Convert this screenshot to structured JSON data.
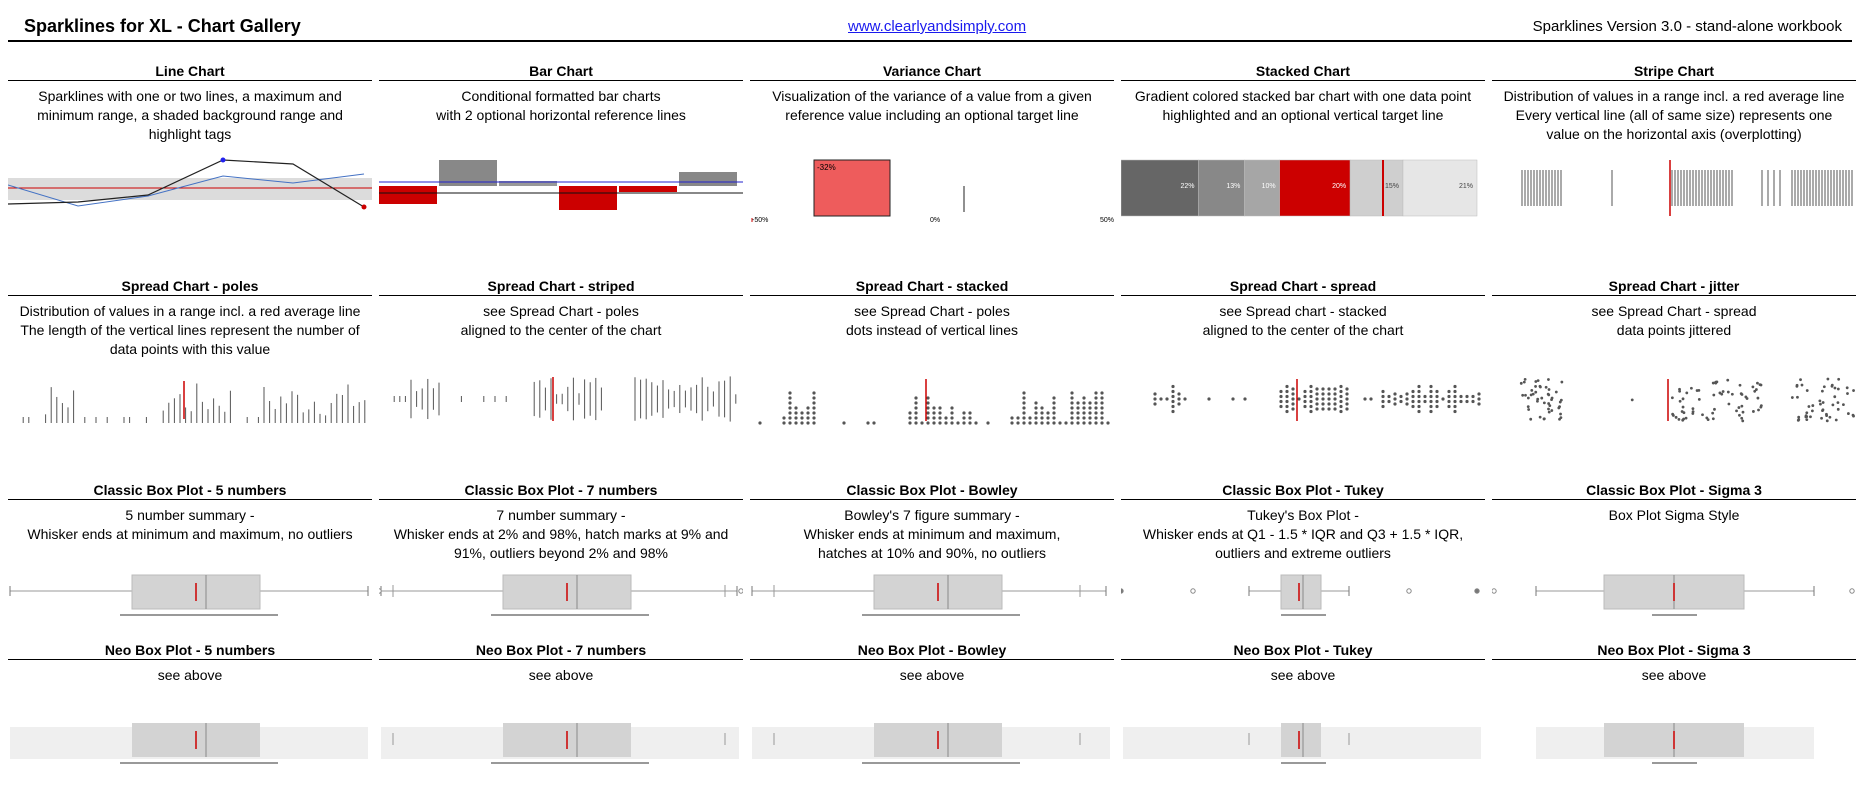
{
  "header": {
    "title": "Sparklines for XL - Chart Gallery",
    "link": "www.clearlyandsimply.com",
    "version": "Sparklines Version 3.0 - stand-alone workbook"
  },
  "colors": {
    "accent_red": "#cc0000",
    "grey_dark": "#666666",
    "grey_mid": "#999999",
    "grey_light": "#d3d3d3",
    "blue": "#4472c4",
    "variance_red": "#ee5c5c"
  },
  "rows": [
    [
      {
        "title": "Line Chart",
        "desc": "Sparklines with one or two lines, a maximum and\nminimum range, a shaded background range and\nhighlight tags",
        "chart": "line"
      },
      {
        "title": "Bar Chart",
        "desc": "Conditional formatted bar charts\nwith 2 optional horizontal reference lines",
        "chart": "bar"
      },
      {
        "title": "Variance Chart",
        "desc": "Visualization of the variance of a value from a given\nreference value  including an optional target line",
        "chart": "variance"
      },
      {
        "title": "Stacked Chart",
        "desc": "Gradient colored stacked bar chart with one data point\nhighlighted and an optional vertical target line",
        "chart": "stacked"
      },
      {
        "title": "Stripe Chart",
        "desc": "Distribution of values in a range incl. a red average line\nEvery vertical line (all of same size) represents one\nvalue on the horizontal axis (overplotting)",
        "chart": "stripe"
      }
    ],
    [
      {
        "title": "Spread Chart - poles",
        "desc": "Distribution of values in a range incl. a red average line\nThe length of the vertical lines represent the number of\ndata points with this value",
        "chart": "poles"
      },
      {
        "title": "Spread Chart - striped",
        "desc": "see Spread Chart - poles\naligned to the center of the chart",
        "chart": "striped"
      },
      {
        "title": "Spread Chart - stacked",
        "desc": "see Spread Chart - poles\ndots instead of vertical lines",
        "chart": "dotstack"
      },
      {
        "title": "Spread Chart - spread",
        "desc": "see Spread chart - stacked\naligned to the center of the chart",
        "chart": "dotspread"
      },
      {
        "title": "Spread Chart - jitter",
        "desc": "see Spread Chart - spread\ndata points jittered",
        "chart": "jitter"
      }
    ],
    [
      {
        "title": "Classic Box Plot - 5 numbers",
        "desc": "5 number summary -\nWhisker ends at minimum and maximum, no outliers",
        "chart": "box5"
      },
      {
        "title": "Classic Box Plot - 7 numbers",
        "desc": "7 number summary -\nWhisker ends at 2% and 98%, hatch marks at 9% and\n91%, outliers beyond 2% and 98%",
        "chart": "box7"
      },
      {
        "title": "Classic Box Plot - Bowley",
        "desc": "Bowley's 7 figure summary -\nWhisker ends at minimum and maximum,\nhatches at 10% and 90%, no outliers",
        "chart": "boxbowley"
      },
      {
        "title": "Classic Box Plot - Tukey",
        "desc": "Tukey's Box Plot -\nWhisker ends at Q1 - 1.5 * IQR and Q3 + 1.5 * IQR,\noutliers and extreme outliers",
        "chart": "boxtukey"
      },
      {
        "title": "Classic Box Plot - Sigma 3",
        "desc": "Box Plot Sigma Style",
        "chart": "boxsigma"
      }
    ],
    [
      {
        "title": "Neo Box Plot - 5 numbers",
        "desc": "see above",
        "chart": "neo5"
      },
      {
        "title": "Neo Box Plot - 7 numbers",
        "desc": "see above",
        "chart": "neo7"
      },
      {
        "title": "Neo Box Plot - Bowley",
        "desc": "see above",
        "chart": "neobowley"
      },
      {
        "title": "Neo Box Plot - Tukey",
        "desc": "see above",
        "chart": "neotukey"
      },
      {
        "title": "Neo Box Plot - Sigma 3",
        "desc": "see above",
        "chart": "neosigma"
      }
    ]
  ],
  "chart_labels": {
    "variance": {
      "value_label": "-32%",
      "axis": [
        "-50%",
        "0%",
        "50%"
      ]
    },
    "stacked": {
      "segments": [
        {
          "label": "22%",
          "share": 22,
          "color": "#666666"
        },
        {
          "label": "13%",
          "share": 13,
          "color": "#888888"
        },
        {
          "label": "10%",
          "share": 10,
          "color": "#a6a6a6"
        },
        {
          "label": "20%",
          "share": 20,
          "color": "#cc0000"
        },
        {
          "label": "15%",
          "share": 15,
          "color": "#cfcfcf"
        },
        {
          "label": "21%",
          "share": 21,
          "color": "#e6e6e6"
        }
      ]
    }
  }
}
